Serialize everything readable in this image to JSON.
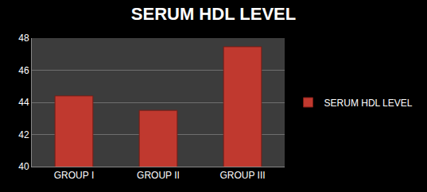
{
  "chart_data": {
    "type": "bar",
    "title": "SERUM HDL LEVEL",
    "categories": [
      "GROUP I",
      "GROUP II",
      "GROUP III"
    ],
    "series": [
      {
        "name": "SERUM HDL LEVEL",
        "color": "#c0392f",
        "values": [
          44.4,
          43.5,
          47.46
        ]
      }
    ],
    "ylim": [
      40,
      48
    ],
    "yticks": [
      40,
      42,
      44,
      46,
      48
    ],
    "grid": true,
    "data_labels": true,
    "legend": "right"
  }
}
